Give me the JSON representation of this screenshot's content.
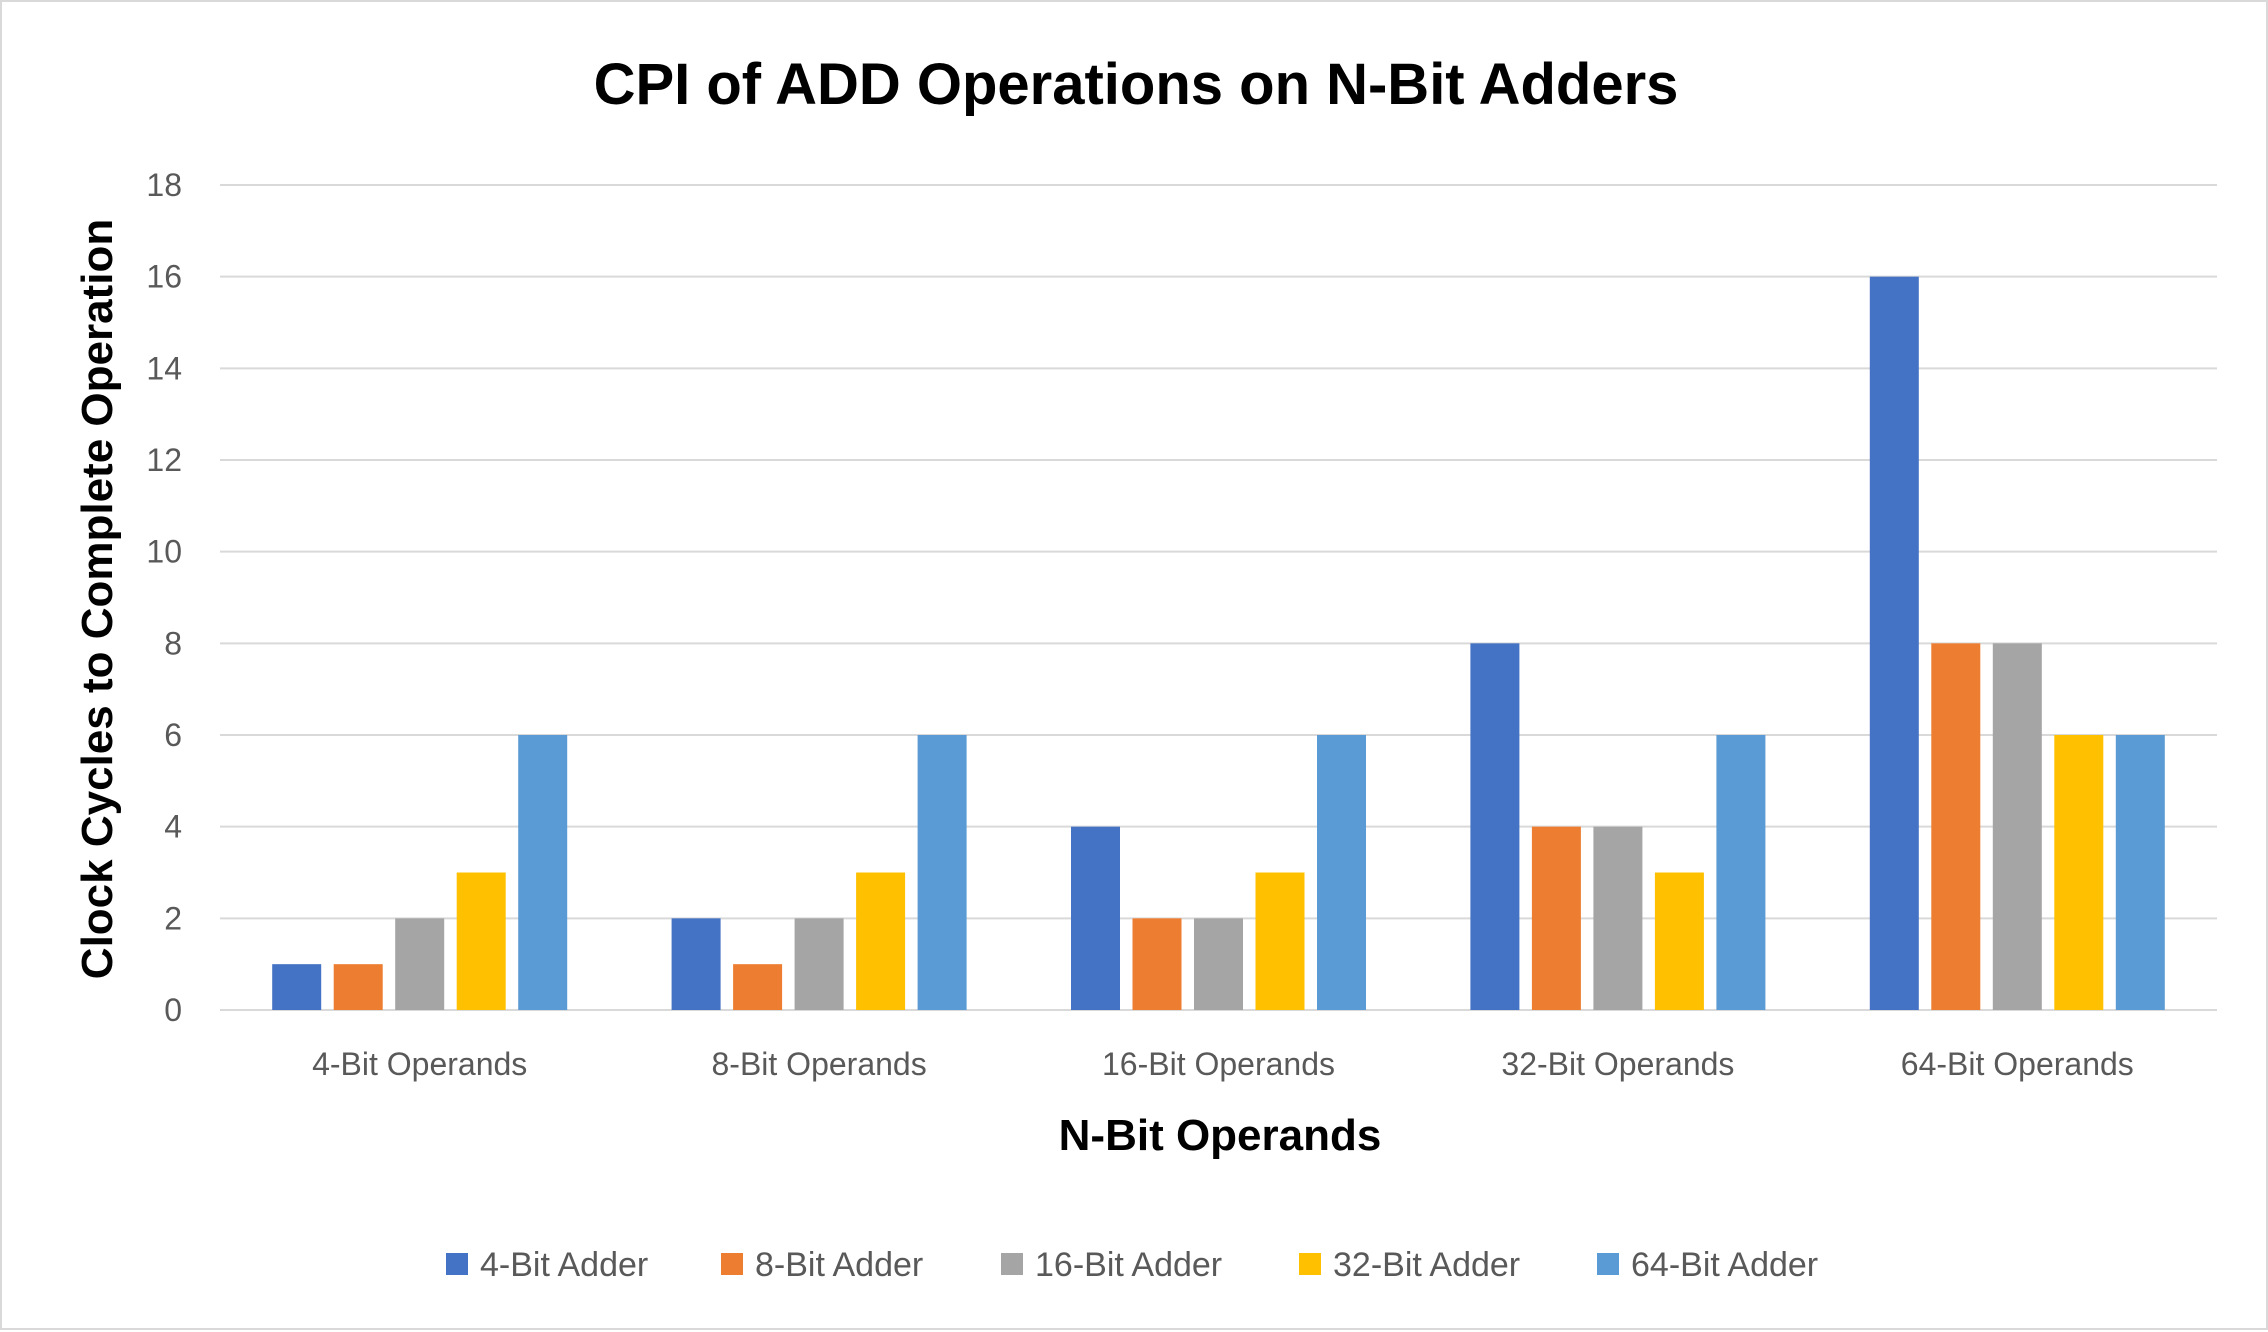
{
  "chart_data": {
    "type": "bar",
    "title": "CPI of ADD Operations on N-Bit Adders",
    "xlabel": "N-Bit Operands",
    "ylabel": "Clock Cycles to Complete Operation",
    "ylim": [
      0,
      18
    ],
    "yticks": [
      0,
      2,
      4,
      6,
      8,
      10,
      12,
      14,
      16,
      18
    ],
    "grid": true,
    "legend_position": "bottom",
    "categories": [
      "4-Bit Operands",
      "8-Bit Operands",
      "16-Bit Operands",
      "32-Bit Operands",
      "64-Bit Operands"
    ],
    "series": [
      {
        "name": "4-Bit Adder",
        "color": "#4472c4",
        "values": [
          1,
          2,
          4,
          8,
          16
        ]
      },
      {
        "name": "8-Bit Adder",
        "color": "#ed7d31",
        "values": [
          1,
          1,
          2,
          4,
          8
        ]
      },
      {
        "name": "16-Bit Adder",
        "color": "#a5a5a5",
        "values": [
          2,
          2,
          2,
          4,
          8
        ]
      },
      {
        "name": "32-Bit Adder",
        "color": "#ffc000",
        "values": [
          3,
          3,
          3,
          3,
          6
        ]
      },
      {
        "name": "64-Bit Adder",
        "color": "#5b9bd5",
        "values": [
          6,
          6,
          6,
          6,
          6
        ]
      }
    ]
  },
  "colors": {
    "gridline": "#d9d9d9",
    "border": "#d9d9d9",
    "tick_text": "#595959"
  }
}
